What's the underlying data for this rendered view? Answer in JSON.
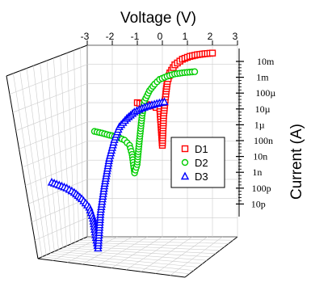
{
  "chart_data": {
    "type": "scatter",
    "style": "3d-projection",
    "xlabel": "Voltage (V)",
    "ylabel": "Current (A)",
    "x_ticks": [
      "-3",
      "-2",
      "-1",
      "0",
      "1",
      "2",
      "3"
    ],
    "xlim": [
      -3,
      3
    ],
    "y_ticks": [
      "10m",
      "1m",
      "100µ",
      "10µ",
      "1µ",
      "100n",
      "10n",
      "1n",
      "100p",
      "10p"
    ],
    "y_scale": "log",
    "ylim": [
      1e-11,
      0.01
    ],
    "grid": true,
    "legend_position": "inside-right",
    "series": [
      {
        "name": "D1",
        "marker": "square",
        "color": "#ff0000",
        "depth": 0,
        "x": [
          -1.0,
          -0.8,
          -0.6,
          -0.4,
          -0.25,
          -0.1,
          0.0,
          0.05,
          0.1,
          0.15,
          0.2,
          0.3,
          0.5,
          0.8,
          1.1,
          1.4,
          1.7,
          2.0
        ],
        "y": [
          2e-05,
          1.8e-05,
          1.6e-05,
          1.4e-05,
          1.2e-05,
          1e-05,
          2e-07,
          5e-06,
          2e-05,
          7e-05,
          0.0002,
          0.0005,
          0.0012,
          0.0022,
          0.003,
          0.0036,
          0.004,
          0.0043
        ]
      },
      {
        "name": "D2",
        "marker": "circle",
        "color": "#00cc00",
        "depth": 1,
        "x": [
          -2.0,
          -1.7,
          -1.4,
          -1.1,
          -0.8,
          -0.6,
          -0.5,
          -0.4,
          -0.3,
          -0.2,
          -0.1,
          0.0,
          0.2,
          0.4,
          0.6,
          0.9,
          1.2,
          1.6,
          2.0
        ],
        "y": [
          1.8e-06,
          1.5e-06,
          1.2e-06,
          1e-06,
          7e-07,
          4e-07,
          1.5e-07,
          2e-08,
          5e-08,
          8e-07,
          1e-05,
          5e-05,
          0.00015,
          0.0003,
          0.0005,
          0.0007,
          0.0009,
          0.00105,
          0.00115
        ]
      },
      {
        "name": "D3",
        "marker": "triangle",
        "color": "#0000ff",
        "depth": 2,
        "x": [
          -3.0,
          -2.7,
          -2.4,
          -2.1,
          -1.8,
          -1.5,
          -1.35,
          -1.25,
          -1.15,
          -1.05,
          -0.9,
          -0.7,
          -0.5,
          -0.3,
          0.0,
          0.3,
          0.6,
          0.9,
          1.2,
          1.5
        ],
        "y": [
          1.5e-08,
          1.1e-08,
          8e-09,
          5e-09,
          2.5e-09,
          1e-09,
          3e-10,
          5e-11,
          1.2e-11,
          6e-10,
          1e-08,
          2e-07,
          1.5e-06,
          6e-06,
          1.5e-05,
          3e-05,
          4.5e-05,
          6e-05,
          7.5e-05,
          9e-05
        ]
      }
    ]
  }
}
